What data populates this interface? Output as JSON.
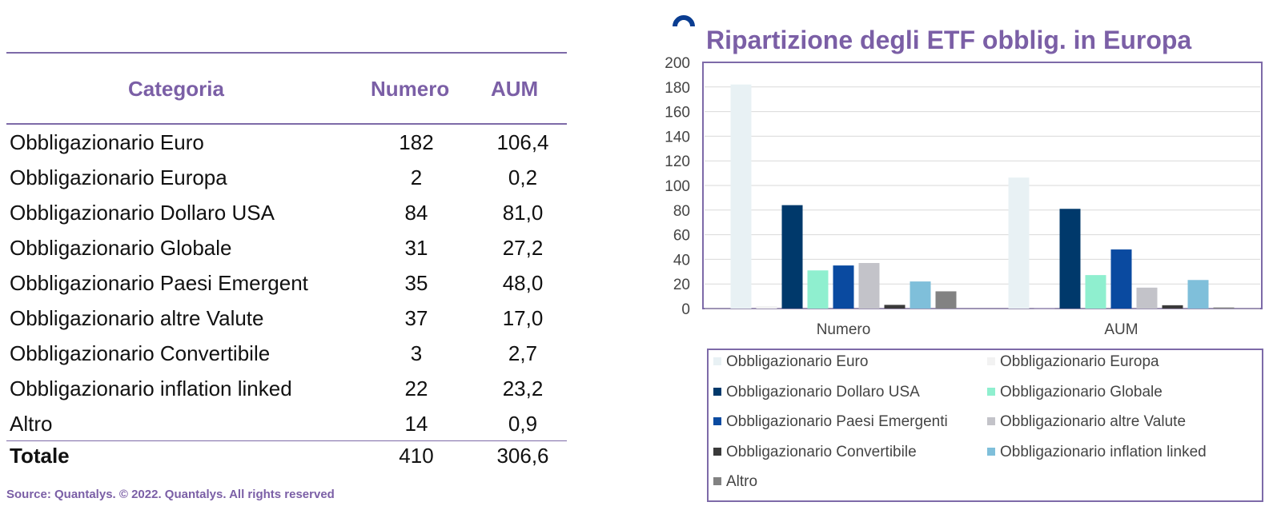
{
  "table": {
    "headers": {
      "category": "Categoria",
      "number": "Numero",
      "aum": "AUM"
    },
    "rows": [
      {
        "category": "Obbligazionario Euro",
        "number": "182",
        "aum": "106,4"
      },
      {
        "category": "Obbligazionario Europa",
        "number": "2",
        "aum": "0,2"
      },
      {
        "category": "Obbligazionario Dollaro USA",
        "number": "84",
        "aum": "81,0"
      },
      {
        "category": "Obbligazionario Globale",
        "number": "31",
        "aum": "27,2"
      },
      {
        "category": "Obbligazionario Paesi Emergent",
        "number": "35",
        "aum": "48,0"
      },
      {
        "category": "Obbligazionario altre Valute",
        "number": "37",
        "aum": "17,0"
      },
      {
        "category": "Obbligazionario Convertibile",
        "number": "3",
        "aum": "2,7"
      },
      {
        "category": "Obbligazionario inflation linked",
        "number": "22",
        "aum": "23,2"
      },
      {
        "category": "Altro",
        "number": "14",
        "aum": "0,9"
      }
    ],
    "total": {
      "category": "Totale",
      "number": "410",
      "aum": "306,6"
    },
    "source": "Source: Quantalys. © 2022. Quantalys. All rights reserved"
  },
  "chart_data": {
    "type": "bar",
    "title": "Ripartizione degli ETF obblig. in Europa",
    "categories": [
      "Numero",
      "AUM"
    ],
    "ylim": [
      0,
      200
    ],
    "yticks": [
      0,
      20,
      40,
      60,
      80,
      100,
      120,
      140,
      160,
      180,
      200
    ],
    "grid": true,
    "legend_position": "bottom",
    "series": [
      {
        "name": "Obbligazionario Euro",
        "color": "#e8f1f4",
        "values": [
          182,
          106.4
        ]
      },
      {
        "name": "Obbligazionario Europa",
        "color": "#f2f2f2",
        "values": [
          2,
          0.2
        ]
      },
      {
        "name": "Obbligazionario Dollaro USA",
        "color": "#00396b",
        "values": [
          84,
          81.0
        ]
      },
      {
        "name": "Obbligazionario Globale",
        "color": "#8fefcf",
        "values": [
          31,
          27.2
        ]
      },
      {
        "name": "Obbligazionario Paesi Emergenti",
        "color": "#0a4aa0",
        "values": [
          35,
          48.0
        ]
      },
      {
        "name": "Obbligazionario altre Valute",
        "color": "#c3c3c9",
        "values": [
          37,
          17.0
        ]
      },
      {
        "name": "Obbligazionario Convertibile",
        "color": "#3a3a3a",
        "values": [
          3,
          2.7
        ]
      },
      {
        "name": "Obbligazionario inflation linked",
        "color": "#7fbfda",
        "values": [
          22,
          23.2
        ]
      },
      {
        "name": "Altro",
        "color": "#828282",
        "values": [
          14,
          0.9
        ]
      }
    ],
    "logo_color": "#0a3d91"
  }
}
